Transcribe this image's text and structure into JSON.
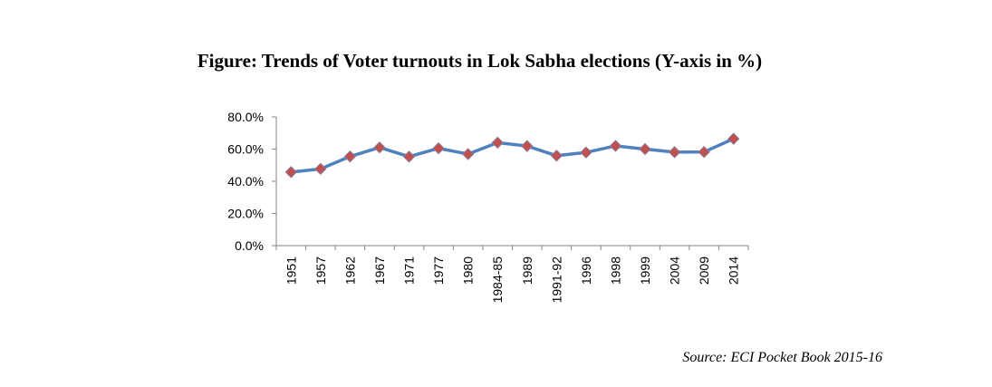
{
  "chart_data": {
    "type": "line",
    "title": "Figure: Trends of Voter turnouts in Lok Sabha elections (Y-axis in %)",
    "categories": [
      "1951",
      "1957",
      "1962",
      "1967",
      "1971",
      "1977",
      "1980",
      "1984-85",
      "1989",
      "1991-92",
      "1996",
      "1998",
      "1999",
      "2004",
      "2009",
      "2014"
    ],
    "series": [
      {
        "values": [
          45.7,
          47.7,
          55.4,
          61.0,
          55.3,
          60.5,
          56.9,
          64.0,
          61.9,
          55.9,
          57.9,
          62.0,
          60.0,
          58.1,
          58.2,
          66.4
        ]
      }
    ],
    "ylim": [
      0,
      80
    ],
    "yticks": [
      "0.0%",
      "20.0%",
      "40.0%",
      "60.0%",
      "80.0%"
    ],
    "ytick_values": [
      0,
      20,
      40,
      60,
      80
    ],
    "grid": false,
    "line_color": "#4F81BD",
    "marker_color": "#C0504D",
    "marker": "diamond"
  },
  "source": "Source: ECI Pocket Book 2015-16"
}
